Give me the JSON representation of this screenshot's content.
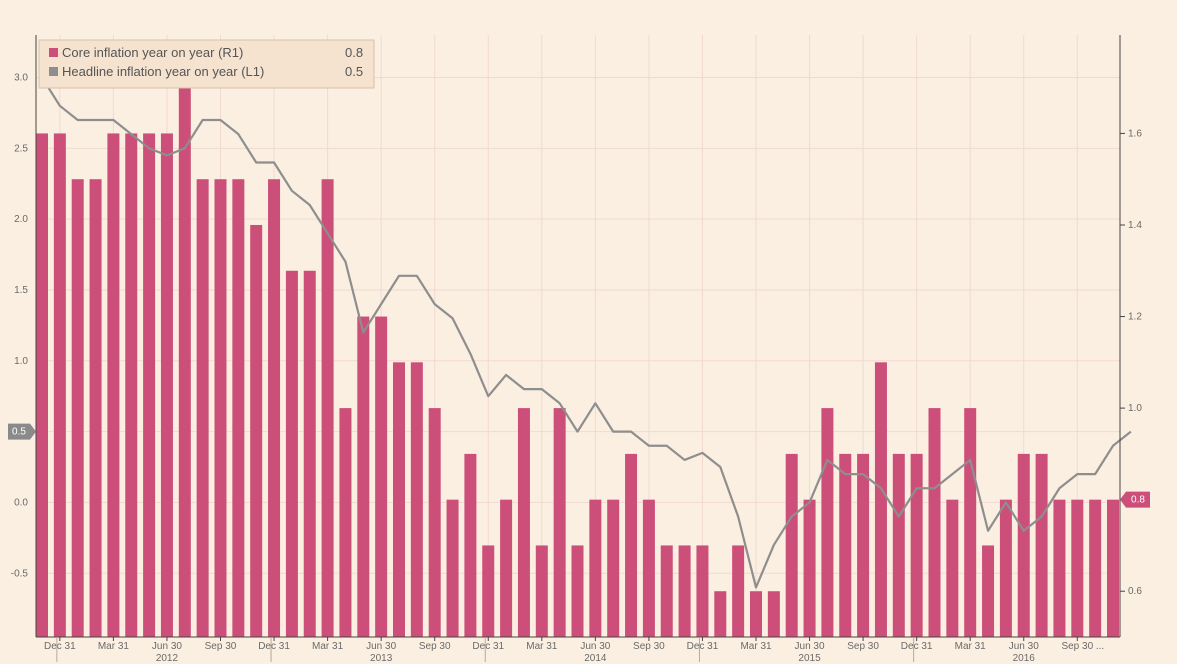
{
  "chart_data": {
    "type": "bar",
    "legend_position": "top-left",
    "grid": true,
    "colors": {
      "background": "#fbefe1",
      "core_bar": "#cc4f7a",
      "headline_line": "#8e8e8e",
      "grid": "#f1d9d2",
      "axis": "#444444",
      "text": "#6a6a6a"
    },
    "left_axis": {
      "ylim": [
        -0.95,
        3.3
      ],
      "ticks": [
        "3.0",
        "2.5",
        "2.0",
        "1.5",
        "1.0",
        "0.5",
        "0.0",
        "-0.5"
      ],
      "tick_values": [
        3.0,
        2.5,
        2.0,
        1.5,
        1.0,
        0.5,
        0.0,
        -0.5
      ],
      "last_value_badge": "0.5"
    },
    "right_axis": {
      "ylim": [
        0.5,
        1.815
      ],
      "ticks": [
        "1.6",
        "1.4",
        "1.2",
        "1.0",
        "0.8",
        "0.6"
      ],
      "tick_values": [
        1.6,
        1.4,
        1.2,
        1.0,
        0.8,
        0.6
      ],
      "last_value_badge": "0.8"
    },
    "x_ticks": [
      {
        "label": "Dec 31",
        "index": 1
      },
      {
        "label": "Mar 31",
        "index": 4
      },
      {
        "label": "Jun 30",
        "index": 7
      },
      {
        "label": "Sep 30",
        "index": 10
      },
      {
        "label": "Dec 31",
        "index": 13
      },
      {
        "label": "Mar 31",
        "index": 16
      },
      {
        "label": "Jun 30",
        "index": 19
      },
      {
        "label": "Sep 30",
        "index": 22
      },
      {
        "label": "Dec 31",
        "index": 25
      },
      {
        "label": "Mar 31",
        "index": 28
      },
      {
        "label": "Jun 30",
        "index": 31
      },
      {
        "label": "Sep 30",
        "index": 34
      },
      {
        "label": "Dec 31",
        "index": 37
      },
      {
        "label": "Mar 31",
        "index": 40
      },
      {
        "label": "Jun 30",
        "index": 43
      },
      {
        "label": "Sep 30",
        "index": 46
      },
      {
        "label": "Dec 31",
        "index": 49
      },
      {
        "label": "Mar 31",
        "index": 52
      },
      {
        "label": "Jun 30",
        "index": 55
      },
      {
        "label": "Sep 30",
        "index": 58
      }
    ],
    "trailing_tick": "...",
    "year_labels": [
      {
        "label": "2012",
        "center": 7,
        "start": 1
      },
      {
        "label": "2013",
        "center": 19,
        "start": 13
      },
      {
        "label": "2014",
        "center": 31,
        "start": 25
      },
      {
        "label": "2015",
        "center": 43,
        "start": 37
      },
      {
        "label": "2016",
        "center": 55,
        "start": 49
      }
    ],
    "series": [
      {
        "name": "Core inflation year on year (R1)",
        "legend_value": "0.8",
        "kind": "bar",
        "axis": "right",
        "values": [
          1.6,
          1.6,
          1.5,
          1.5,
          1.6,
          1.6,
          1.6,
          1.6,
          1.7,
          1.5,
          1.5,
          1.5,
          1.4,
          1.5,
          1.3,
          1.3,
          1.5,
          1.0,
          1.2,
          1.2,
          1.1,
          1.1,
          1.0,
          0.8,
          0.9,
          0.7,
          0.8,
          1.0,
          0.7,
          1.0,
          0.7,
          0.8,
          0.8,
          0.9,
          0.8,
          0.7,
          0.7,
          0.7,
          0.6,
          0.7,
          0.6,
          0.6,
          0.9,
          0.8,
          1.0,
          0.9,
          0.9,
          1.1,
          0.9,
          0.9,
          1.0,
          0.8,
          1.0,
          0.7,
          0.8,
          0.9,
          0.9,
          0.8,
          0.8,
          0.8,
          0.8
        ]
      },
      {
        "name": "Headline inflation year on  year (L1)",
        "legend_value": "0.5",
        "kind": "line",
        "axis": "left",
        "values": [
          3.0,
          2.8,
          2.7,
          2.7,
          2.7,
          2.6,
          2.5,
          2.45,
          2.5,
          2.7,
          2.7,
          2.6,
          2.4,
          2.4,
          2.2,
          2.1,
          1.9,
          1.7,
          1.2,
          1.4,
          1.6,
          1.6,
          1.4,
          1.3,
          1.05,
          0.75,
          0.9,
          0.8,
          0.8,
          0.7,
          0.5,
          0.7,
          0.5,
          0.5,
          0.4,
          0.4,
          0.3,
          0.35,
          0.25,
          -0.1,
          -0.6,
          -0.3,
          -0.1,
          0.0,
          0.3,
          0.2,
          0.2,
          0.1,
          -0.1,
          0.1,
          0.1,
          0.2,
          0.3,
          -0.2,
          0.0,
          -0.2,
          -0.1,
          0.1,
          0.2,
          0.2,
          0.4,
          0.5
        ]
      }
    ]
  }
}
